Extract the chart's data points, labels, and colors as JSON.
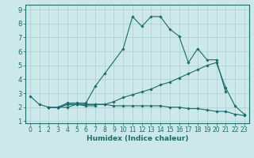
{
  "xlabel": "Humidex (Indice chaleur)",
  "x_values": [
    0,
    1,
    2,
    3,
    4,
    5,
    6,
    7,
    8,
    9,
    10,
    11,
    12,
    13,
    14,
    15,
    16,
    17,
    18,
    19,
    20,
    21,
    22,
    23
  ],
  "line1": [
    2.8,
    2.2,
    2.0,
    2.0,
    2.0,
    2.2,
    2.1,
    2.1,
    null,
    null,
    null,
    null,
    null,
    null,
    null,
    null,
    null,
    null,
    null,
    null,
    null,
    null,
    null,
    null
  ],
  "line2": [
    null,
    null,
    2.0,
    2.0,
    2.3,
    2.3,
    2.3,
    3.5,
    4.4,
    null,
    6.2,
    8.5,
    7.8,
    8.5,
    8.5,
    7.6,
    7.1,
    5.2,
    6.2,
    5.4,
    5.4,
    3.1,
    null,
    null
  ],
  "line3": [
    null,
    null,
    2.0,
    2.0,
    2.2,
    2.2,
    2.2,
    2.2,
    2.2,
    2.4,
    2.7,
    2.9,
    3.1,
    3.3,
    3.6,
    3.8,
    4.1,
    4.4,
    4.7,
    5.0,
    5.2,
    3.4,
    2.1,
    1.5
  ],
  "line4": [
    null,
    null,
    2.0,
    2.0,
    2.2,
    2.2,
    2.2,
    2.2,
    2.2,
    2.1,
    2.1,
    2.1,
    2.1,
    2.1,
    2.1,
    2.0,
    2.0,
    1.9,
    1.9,
    1.8,
    1.7,
    1.7,
    1.5,
    1.4
  ],
  "line_color": "#1a6b6b",
  "bg_color": "#cce8ea",
  "grid_color": "#aacfcf",
  "ylim_min": 1,
  "ylim_max": 9,
  "xlim_min": -0.5,
  "xlim_max": 23.5,
  "tick_fontsize": 5.5,
  "xlabel_fontsize": 6.5
}
